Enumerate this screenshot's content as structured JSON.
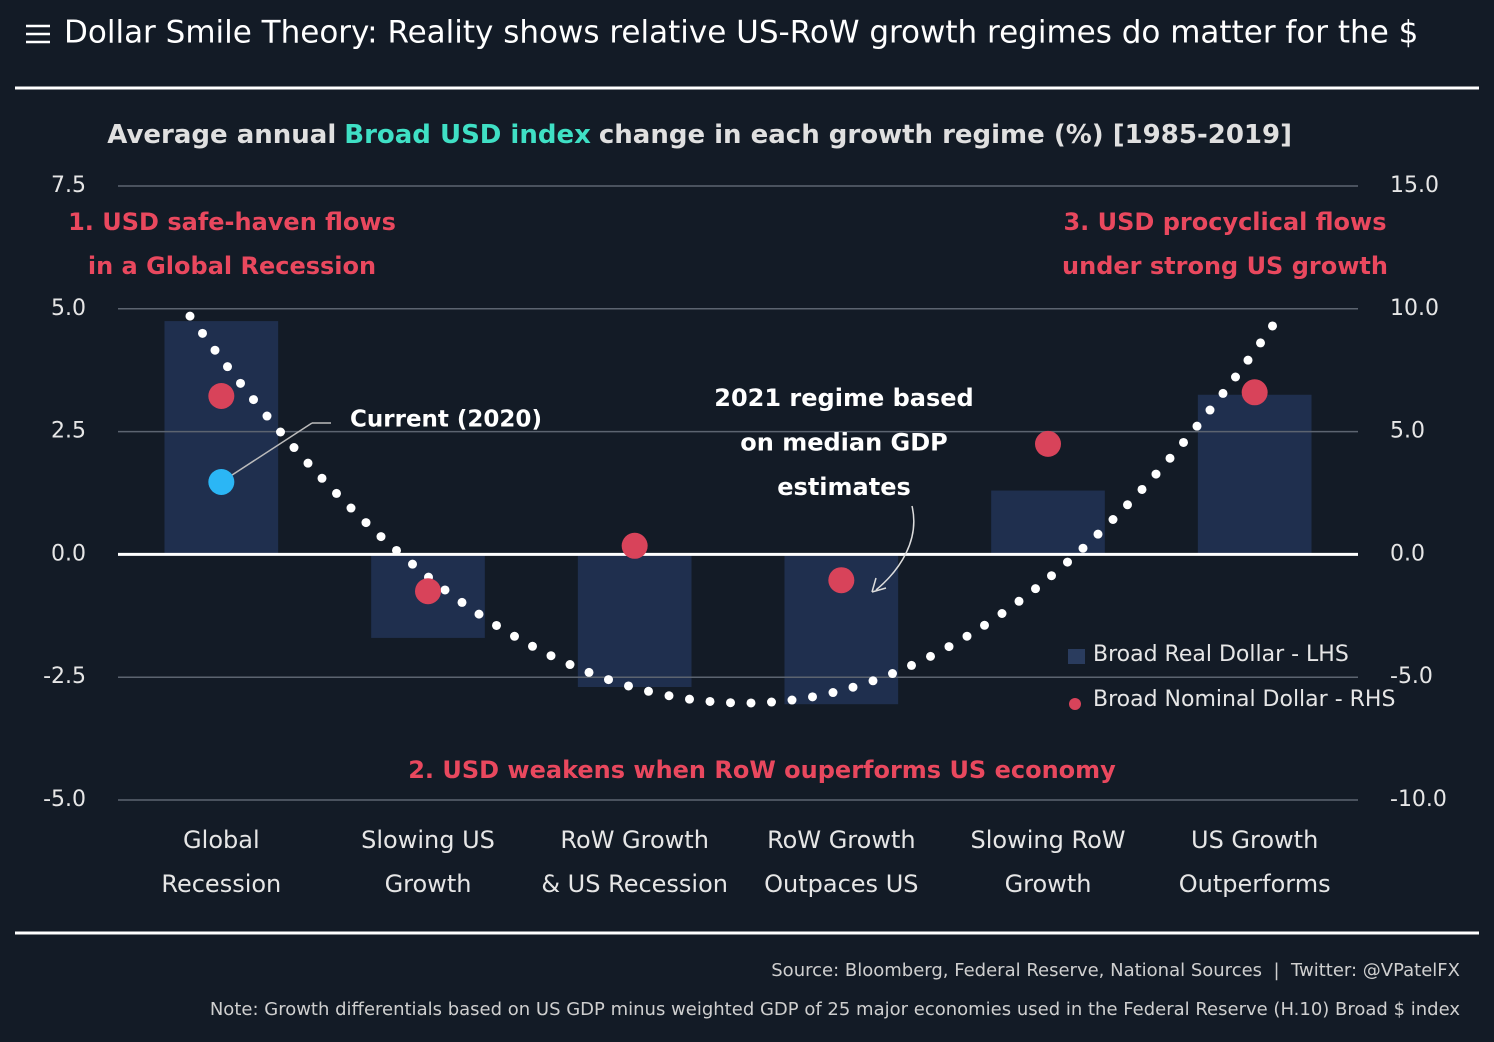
{
  "title": "Dollar Smile Theory: Reality shows relative US-RoW growth regimes do matter for the $",
  "chart_data": {
    "type": "bar",
    "subtitle": [
      "Average annual",
      "Broad USD index",
      "change in each growth regime (%) [1985-2019]"
    ],
    "subtitle_highlight_color": "#3fe0c5",
    "categories": [
      [
        "Global",
        "Recession"
      ],
      [
        "Slowing US",
        "Growth"
      ],
      [
        "RoW Growth",
        "& US Recession"
      ],
      [
        "RoW Growth",
        "Outpaces US"
      ],
      [
        "Slowing RoW",
        "Growth"
      ],
      [
        "US Growth",
        "Outperforms"
      ]
    ],
    "series": [
      {
        "name": "Broad Real Dollar - LHS",
        "type": "bar",
        "color": "#1f2f4e",
        "values": [
          4.75,
          -1.7,
          -2.7,
          -3.05,
          1.3,
          3.25
        ]
      },
      {
        "name": "Broad Nominal Dollar - RHS",
        "type": "scatter",
        "axis": "y2",
        "color": "#d8435a",
        "values": [
          6.45,
          -1.5,
          0.35,
          -1.05,
          4.5,
          6.6
        ]
      }
    ],
    "current": {
      "label": "Current (2020)",
      "value": 2.95,
      "axis": "y2",
      "color": "#2bb6f5"
    },
    "annotations": [
      {
        "lines": [
          "1. USD safe-haven flows",
          "in a Global Recession"
        ],
        "color": "#e9485e"
      },
      {
        "lines": [
          "3. USD procyclical flows",
          "under strong US growth"
        ],
        "color": "#e9485e"
      },
      {
        "lines": [
          "2. USD weakens when RoW ouperforms US economy"
        ],
        "color": "#e9485e"
      },
      {
        "lines": [
          "2021 regime based",
          "on median GDP",
          "estimates"
        ],
        "color": "#ffffff"
      }
    ],
    "ylim": [
      -5,
      7.5
    ],
    "yticks": [
      {
        "value": -5,
        "label": "-5.0"
      },
      {
        "value": -2.5,
        "label": "-2.5"
      },
      {
        "value": 0,
        "label": "0.0"
      },
      {
        "value": 2.5,
        "label": "2.5"
      },
      {
        "value": 5,
        "label": "5.0"
      },
      {
        "value": 7.5,
        "label": "7.5"
      }
    ],
    "y2lim": [
      -10,
      15
    ],
    "y2ticks": [
      {
        "value": -10,
        "label": "-10.0"
      },
      {
        "value": -5,
        "label": "-5.0"
      },
      {
        "value": 0,
        "label": "0.0"
      },
      {
        "value": 5,
        "label": "5.0"
      },
      {
        "value": 10,
        "label": "10.0"
      },
      {
        "value": 15,
        "label": "15.0"
      }
    ],
    "grid": true,
    "legend": "lower right"
  },
  "source": "Source: Bloomberg, Federal Reserve, National Sources  |  Twitter: @VPatelFX",
  "note": "Note: Growth differentials based on US GDP minus weighted GDP of 25 major economies used in the Federal Reserve (H.10) Broad $ index"
}
